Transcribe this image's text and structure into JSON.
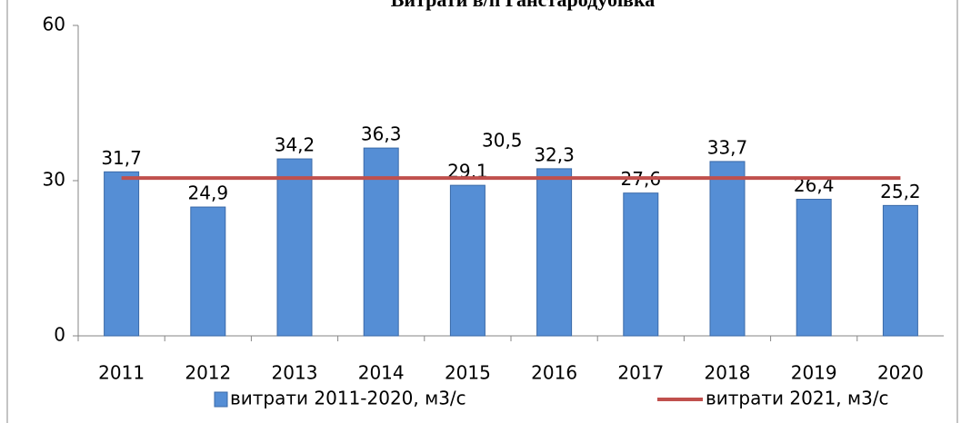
{
  "chart_data": {
    "type": "bar",
    "title": "Витрати в/п Ганстародубівка",
    "categories": [
      "2011",
      "2012",
      "2013",
      "2014",
      "2015",
      "2016",
      "2017",
      "2018",
      "2019",
      "2020"
    ],
    "series": [
      {
        "name": "витрати 2011-2020, м3/с",
        "type": "bar",
        "color": "#558ed5",
        "values": [
          31.7,
          24.9,
          34.2,
          36.3,
          29.1,
          32.3,
          27.6,
          33.7,
          26.4,
          25.2
        ],
        "value_labels": [
          "31,7",
          "24,9",
          "34,2",
          "36,3",
          "29,1",
          "32,3",
          "27,6",
          "33,7",
          "26,4",
          "25,2"
        ]
      },
      {
        "name": "витрати 2021, м3/с",
        "type": "line",
        "color": "#c0504d",
        "values": [
          30.5,
          30.5,
          30.5,
          30.5,
          30.5,
          30.5,
          30.5,
          30.5,
          30.5,
          30.5
        ]
      }
    ],
    "annotation": {
      "text": "30,5",
      "color": "#ff0000"
    },
    "ylim": [
      0,
      60
    ],
    "yticks": [
      0,
      30,
      60
    ],
    "grid": false,
    "legend": "bottom"
  }
}
